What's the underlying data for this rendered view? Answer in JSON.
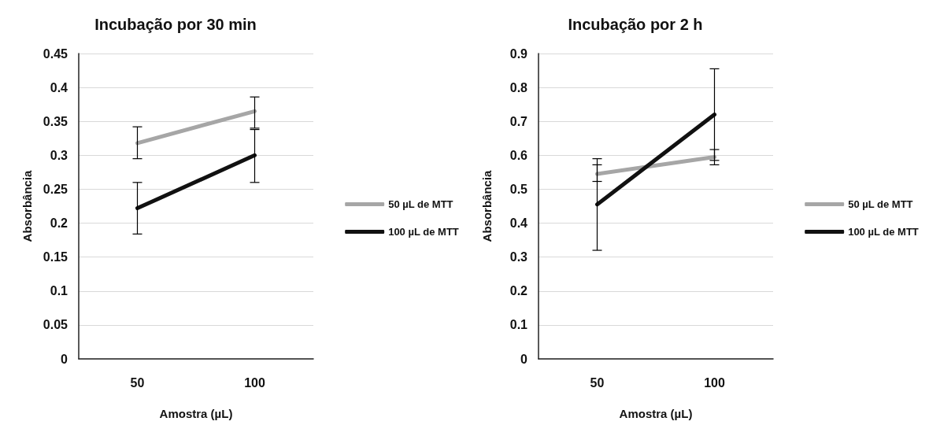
{
  "chart_data": [
    {
      "type": "line",
      "title": "Incubação por 30 min",
      "xlabel": "Amostra (µL)",
      "ylabel": "Absorbância",
      "categories": [
        "50",
        "100"
      ],
      "series": [
        {
          "name": "50 µL de MTT",
          "color": "#a6a6a6",
          "values": [
            0.318,
            0.365
          ],
          "errors": [
            [
              0.295,
              0.342
            ],
            [
              0.34,
              0.386
            ]
          ]
        },
        {
          "name": "100 µL de MTT",
          "color": "#111111",
          "values": [
            0.222,
            0.3
          ],
          "errors": [
            [
              0.184,
              0.26
            ],
            [
              0.26,
              0.338
            ]
          ]
        }
      ],
      "ylim": [
        0,
        0.45
      ],
      "yticks": [
        0,
        0.05,
        0.1,
        0.15,
        0.2,
        0.25,
        0.3,
        0.35,
        0.4,
        0.45
      ],
      "grid": "y",
      "legend": "right",
      "marker": "none",
      "line_style": "solid"
    },
    {
      "type": "line",
      "title": "Incubação por 2 h",
      "xlabel": "Amostra (µL)",
      "ylabel": "Absorbância",
      "categories": [
        "50",
        "100"
      ],
      "series": [
        {
          "name": "50 µL de MTT",
          "color": "#a6a6a6",
          "values": [
            0.545,
            0.595
          ],
          "errors": [
            [
              0.523,
              0.572
            ],
            [
              0.572,
              0.617
            ]
          ]
        },
        {
          "name": "100 µL de MTT",
          "color": "#111111",
          "values": [
            0.455,
            0.72
          ],
          "errors": [
            [
              0.32,
              0.59
            ],
            [
              0.585,
              0.855
            ]
          ]
        }
      ],
      "ylim": [
        0,
        0.9
      ],
      "yticks": [
        0,
        0.1,
        0.2,
        0.3,
        0.4,
        0.5,
        0.6,
        0.7,
        0.8,
        0.9
      ],
      "grid": "y",
      "legend": "right",
      "marker": "none",
      "line_style": "solid"
    }
  ]
}
